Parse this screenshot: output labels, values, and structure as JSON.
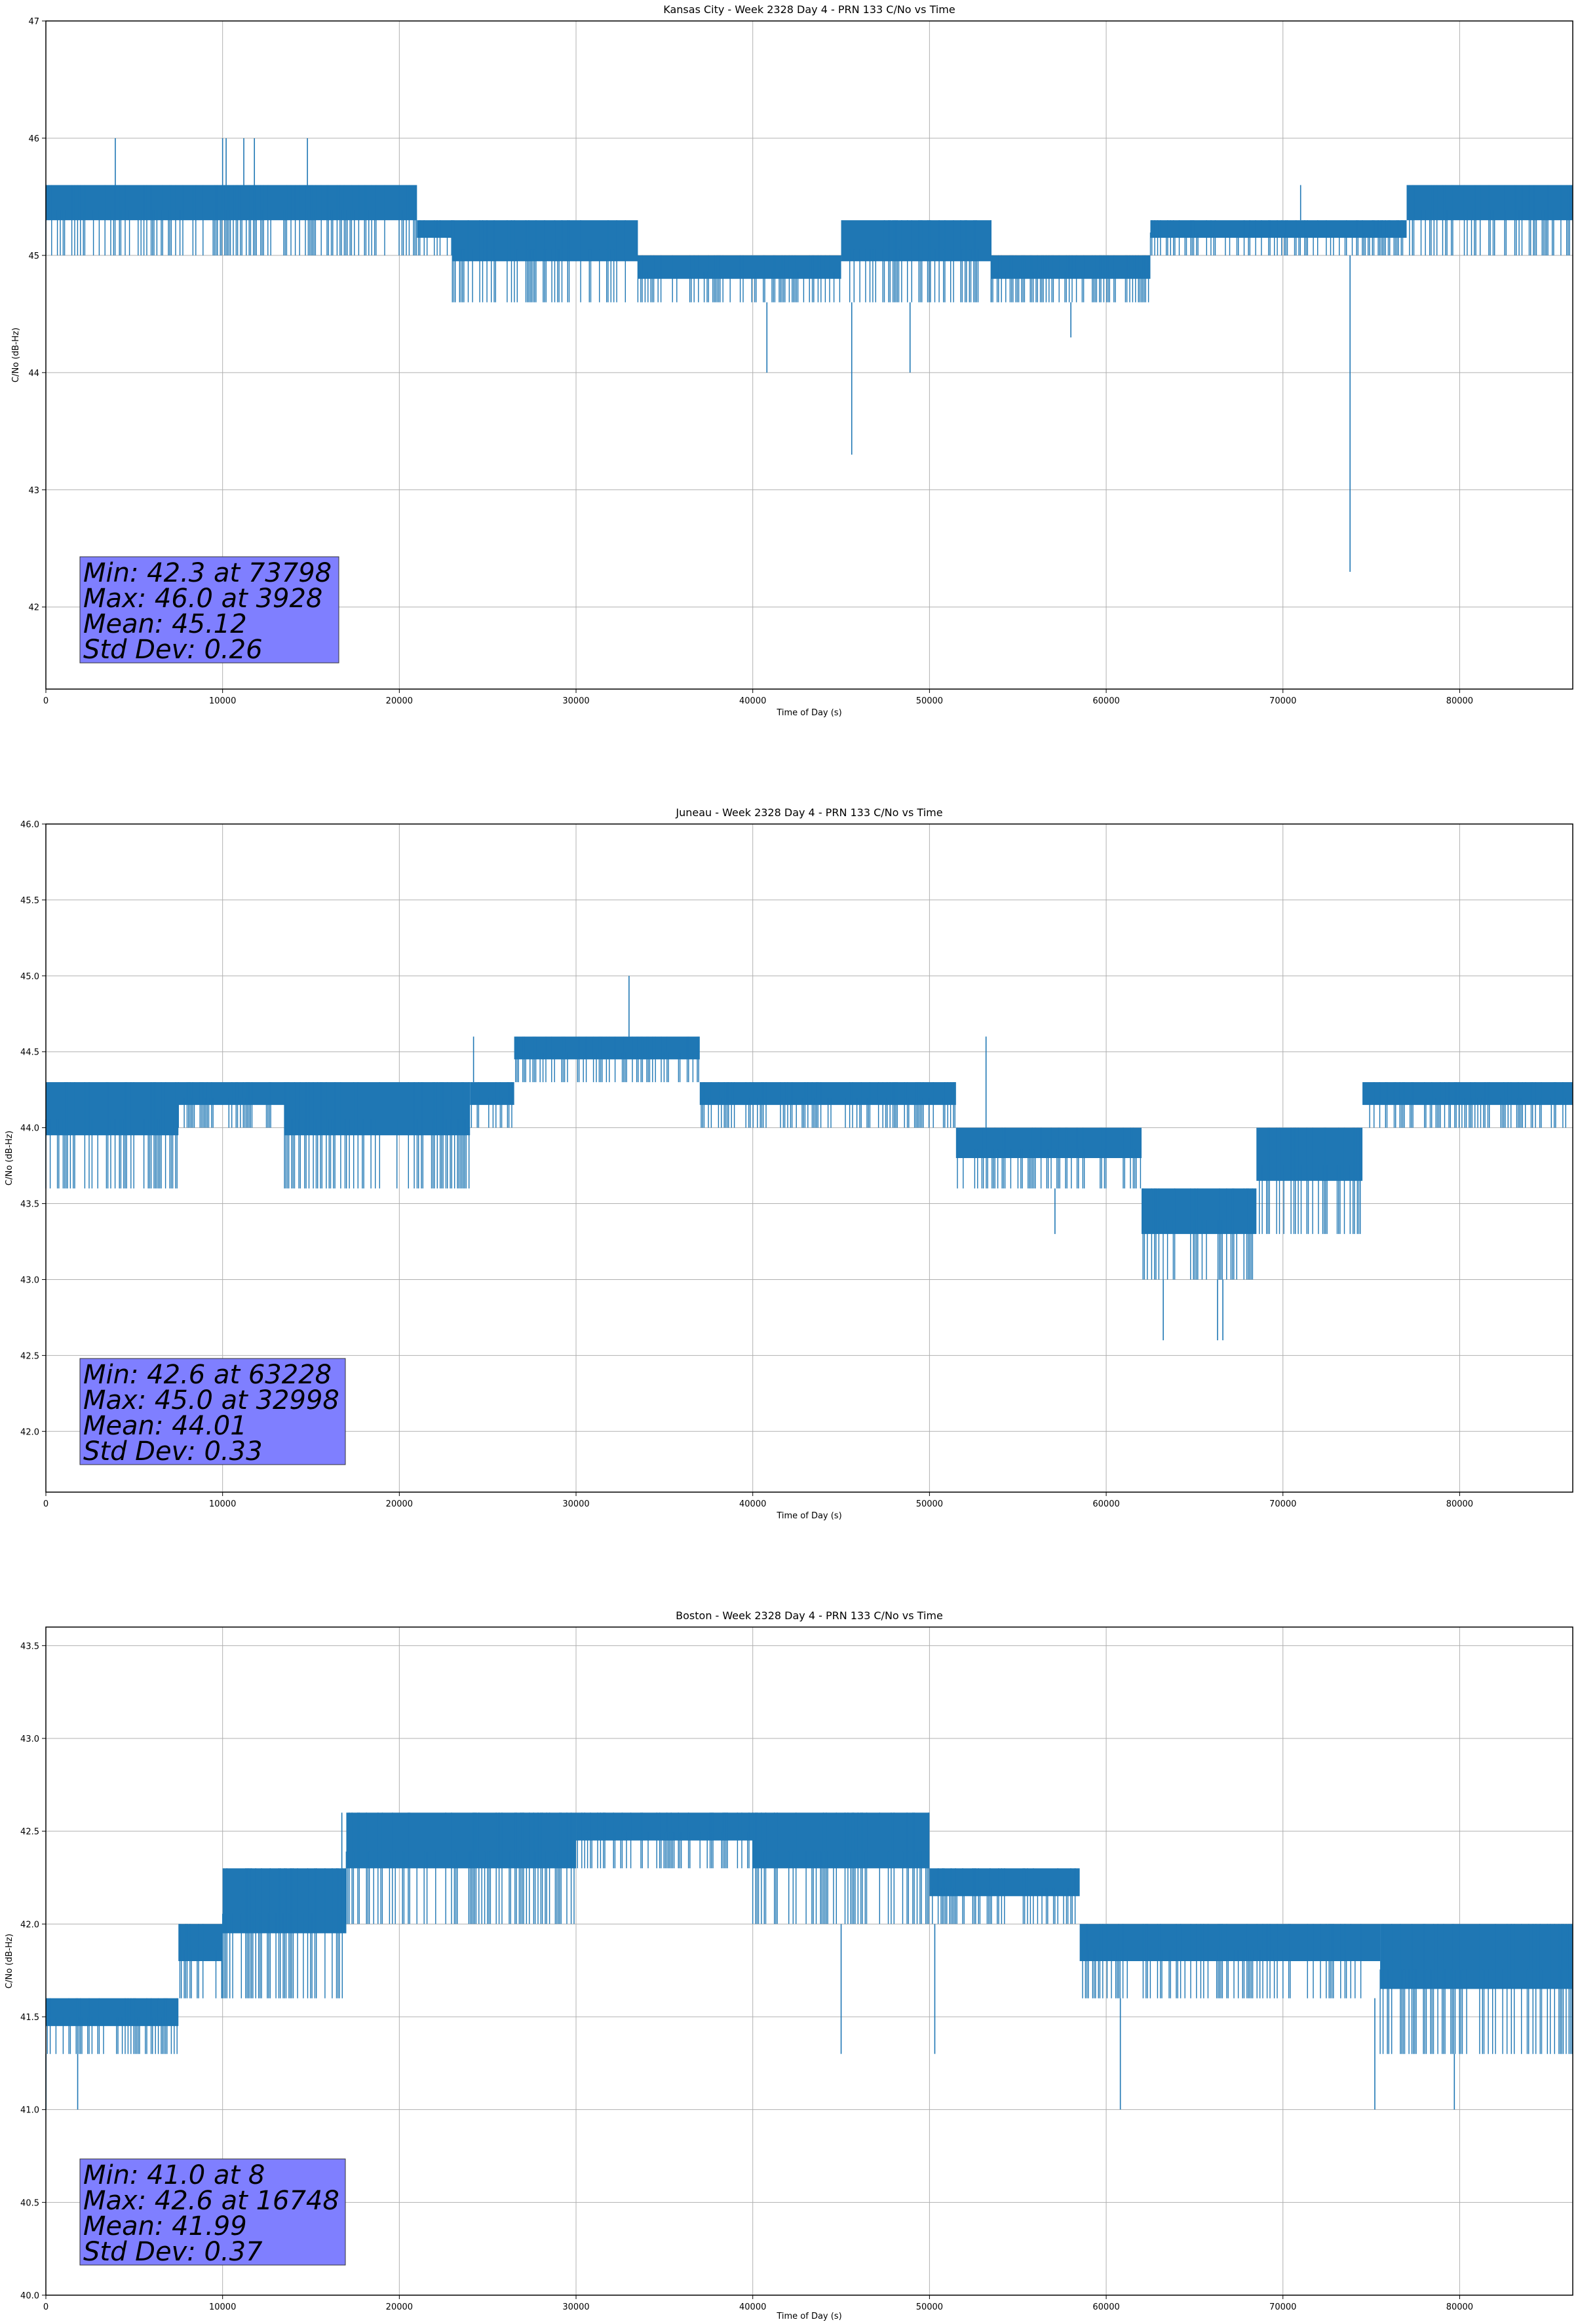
{
  "chart_data": [
    {
      "type": "line",
      "title": "Kansas City - Week 2328 Day 4 - PRN 133 C/No vs Time",
      "xlabel": "Time of Day (s)",
      "ylabel": "C/No (dB-Hz)",
      "xlim": [
        0,
        86400
      ],
      "ylim": [
        41.3,
        47.0
      ],
      "xticks": [
        0,
        10000,
        20000,
        30000,
        40000,
        50000,
        60000,
        70000,
        80000
      ],
      "yticks": [
        42,
        43,
        44,
        45,
        46,
        47
      ],
      "ytick_decimals": 0,
      "grid": true,
      "color": "#1f77b4",
      "segments": [
        {
          "x0": 0,
          "x1": 21000,
          "lo": 45.0,
          "hi": 45.6
        },
        {
          "x0": 21000,
          "x1": 23000,
          "lo": 45.0,
          "hi": 45.3
        },
        {
          "x0": 23000,
          "x1": 33500,
          "lo": 44.6,
          "hi": 45.3
        },
        {
          "x0": 33500,
          "x1": 45000,
          "lo": 44.6,
          "hi": 45.0
        },
        {
          "x0": 45000,
          "x1": 53500,
          "lo": 44.6,
          "hi": 45.3
        },
        {
          "x0": 53500,
          "x1": 62500,
          "lo": 44.6,
          "hi": 45.0
        },
        {
          "x0": 62500,
          "x1": 77000,
          "lo": 45.0,
          "hi": 45.3
        },
        {
          "x0": 77000,
          "x1": 86400,
          "lo": 45.0,
          "hi": 45.6
        }
      ],
      "spikes": [
        {
          "x": 3928,
          "y": 46.0
        },
        {
          "x": 10000,
          "y": 46.0
        },
        {
          "x": 10200,
          "y": 46.0
        },
        {
          "x": 11200,
          "y": 46.0
        },
        {
          "x": 11800,
          "y": 46.0
        },
        {
          "x": 14800,
          "y": 46.0
        },
        {
          "x": 40800,
          "y": 44.0
        },
        {
          "x": 45600,
          "y": 43.3
        },
        {
          "x": 48900,
          "y": 44.0
        },
        {
          "x": 58000,
          "y": 44.3
        },
        {
          "x": 73798,
          "y": 42.3
        },
        {
          "x": 71000,
          "y": 45.6
        }
      ],
      "stats": {
        "min": "Min: 42.3 at 73798",
        "max": "Max: 46.0 at 3928",
        "mean": "Mean: 45.12",
        "std": "Std Dev: 0.26"
      }
    },
    {
      "type": "line",
      "title": "Juneau - Week 2328 Day 4 - PRN 133 C/No vs Time",
      "xlabel": "Time of Day (s)",
      "ylabel": "C/No (dB-Hz)",
      "xlim": [
        0,
        86400
      ],
      "ylim": [
        41.6,
        46.0
      ],
      "xticks": [
        0,
        10000,
        20000,
        30000,
        40000,
        50000,
        60000,
        70000,
        80000
      ],
      "yticks": [
        42.0,
        42.5,
        43.0,
        43.5,
        44.0,
        44.5,
        45.0,
        45.5,
        46.0
      ],
      "ytick_decimals": 1,
      "grid": true,
      "color": "#1f77b4",
      "segments": [
        {
          "x0": 0,
          "x1": 7500,
          "lo": 43.6,
          "hi": 44.3
        },
        {
          "x0": 7500,
          "x1": 13500,
          "lo": 44.0,
          "hi": 44.3
        },
        {
          "x0": 13500,
          "x1": 24000,
          "lo": 43.6,
          "hi": 44.3
        },
        {
          "x0": 24000,
          "x1": 26500,
          "lo": 44.0,
          "hi": 44.3
        },
        {
          "x0": 26500,
          "x1": 37000,
          "lo": 44.3,
          "hi": 44.6
        },
        {
          "x0": 37000,
          "x1": 51500,
          "lo": 44.0,
          "hi": 44.3
        },
        {
          "x0": 51500,
          "x1": 62000,
          "lo": 43.6,
          "hi": 44.0
        },
        {
          "x0": 62000,
          "x1": 68500,
          "lo": 43.0,
          "hi": 43.6
        },
        {
          "x0": 68500,
          "x1": 74500,
          "lo": 43.3,
          "hi": 44.0
        },
        {
          "x0": 74500,
          "x1": 86400,
          "lo": 44.0,
          "hi": 44.3
        }
      ],
      "spikes": [
        {
          "x": 32998,
          "y": 45.0
        },
        {
          "x": 63228,
          "y": 42.6
        },
        {
          "x": 66300,
          "y": 42.6
        },
        {
          "x": 66600,
          "y": 42.6
        },
        {
          "x": 57100,
          "y": 43.3
        },
        {
          "x": 53200,
          "y": 44.6
        },
        {
          "x": 24200,
          "y": 44.6
        }
      ],
      "stats": {
        "min": "Min: 42.6 at 63228",
        "max": "Max: 45.0 at 32998",
        "mean": "Mean: 44.01",
        "std": "Std Dev: 0.33"
      }
    },
    {
      "type": "line",
      "title": "Boston - Week 2328 Day 4 - PRN 133 C/No vs Time",
      "xlabel": "Time of Day (s)",
      "ylabel": "C/No (dB-Hz)",
      "xlim": [
        0,
        86400
      ],
      "ylim": [
        40.0,
        43.6
      ],
      "xticks": [
        0,
        10000,
        20000,
        30000,
        40000,
        50000,
        60000,
        70000,
        80000
      ],
      "yticks": [
        40.0,
        40.5,
        41.0,
        41.5,
        42.0,
        42.5,
        43.0,
        43.5
      ],
      "ytick_decimals": 1,
      "grid": true,
      "color": "#1f77b4",
      "segments": [
        {
          "x0": 0,
          "x1": 7500,
          "lo": 41.3,
          "hi": 41.6
        },
        {
          "x0": 7500,
          "x1": 10000,
          "lo": 41.6,
          "hi": 42.0
        },
        {
          "x0": 10000,
          "x1": 17000,
          "lo": 41.6,
          "hi": 42.3
        },
        {
          "x0": 17000,
          "x1": 30000,
          "lo": 42.0,
          "hi": 42.6
        },
        {
          "x0": 30000,
          "x1": 40000,
          "lo": 42.3,
          "hi": 42.6
        },
        {
          "x0": 40000,
          "x1": 50000,
          "lo": 42.0,
          "hi": 42.6
        },
        {
          "x0": 50000,
          "x1": 58500,
          "lo": 42.0,
          "hi": 42.3
        },
        {
          "x0": 58500,
          "x1": 75500,
          "lo": 41.6,
          "hi": 42.0
        },
        {
          "x0": 75500,
          "x1": 86400,
          "lo": 41.3,
          "hi": 42.0
        }
      ],
      "spikes": [
        {
          "x": 8,
          "y": 41.0
        },
        {
          "x": 1800,
          "y": 41.0
        },
        {
          "x": 16748,
          "y": 42.6
        },
        {
          "x": 60800,
          "y": 41.0
        },
        {
          "x": 75200,
          "y": 41.0
        },
        {
          "x": 79700,
          "y": 41.0
        },
        {
          "x": 45000,
          "y": 41.3
        },
        {
          "x": 50300,
          "y": 41.3
        }
      ],
      "stats": {
        "min": "Min: 41.0 at 8",
        "max": "Max: 42.6 at 16748",
        "mean": "Mean: 41.99",
        "std": "Std Dev: 0.37"
      }
    }
  ]
}
